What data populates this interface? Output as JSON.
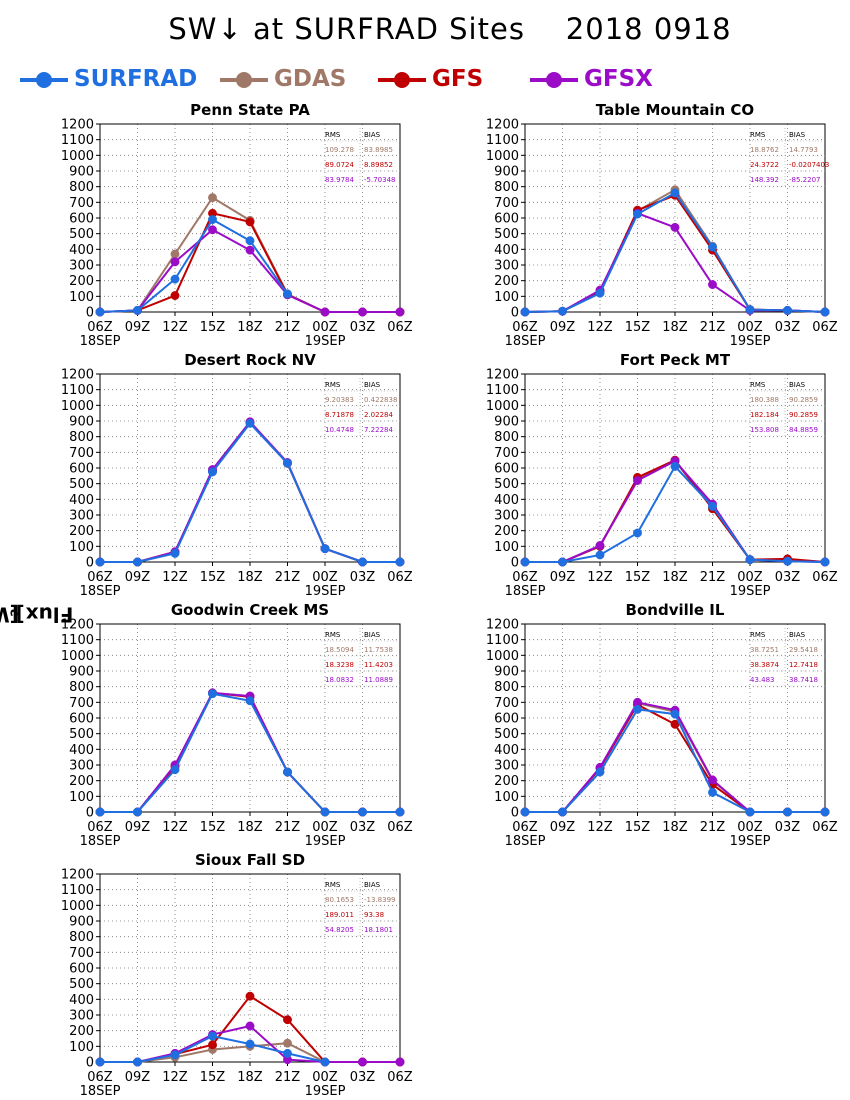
{
  "title": "SW↓ at SURFRAD Sites    2018 0918",
  "ylabel_main": "Flux [Wm",
  "ylabel_sup": "-2",
  "ylabel_end": "]",
  "legend": [
    {
      "label": "SURFRAD",
      "color": "#1f6fe0"
    },
    {
      "label": "GDAS",
      "color": "#a07868"
    },
    {
      "label": "GFS",
      "color": "#c00000"
    },
    {
      "label": "GFSX",
      "color": "#9a0cc8"
    }
  ],
  "chart_data": [
    {
      "type": "line",
      "title": "Penn State PA",
      "categories": [
        "06Z\n18SEP",
        "09Z",
        "12Z",
        "15Z",
        "18Z",
        "21Z",
        "00Z\n19SEP",
        "03Z",
        "06Z"
      ],
      "ylim": [
        0,
        1200
      ],
      "yticks": [
        0,
        100,
        200,
        300,
        400,
        500,
        600,
        700,
        800,
        900,
        1000,
        1100,
        1200
      ],
      "grid": true,
      "stats_header": [
        "RMS",
        "BIAS"
      ],
      "stats": [
        [
          "109.278",
          "83.8985"
        ],
        [
          "89.0724",
          "8.89852"
        ],
        [
          "83.9784",
          "-5.70348"
        ]
      ],
      "series": [
        {
          "name": "SURFRAD",
          "values": [
            0,
            10,
            210,
            590,
            455,
            115,
            null,
            null,
            null
          ]
        },
        {
          "name": "GDAS",
          "values": [
            0,
            10,
            370,
            730,
            585,
            115,
            0,
            0,
            0
          ]
        },
        {
          "name": "GFS",
          "values": [
            0,
            10,
            105,
            630,
            575,
            110,
            0,
            0,
            0
          ]
        },
        {
          "name": "GFSX",
          "values": [
            0,
            10,
            320,
            525,
            395,
            110,
            0,
            0,
            0
          ]
        }
      ]
    },
    {
      "type": "line",
      "title": "Table Mountain CO",
      "categories": [
        "06Z\n18SEP",
        "09Z",
        "12Z",
        "15Z",
        "18Z",
        "21Z",
        "00Z\n19SEP",
        "03Z",
        "06Z"
      ],
      "ylim": [
        0,
        1200
      ],
      "yticks": [
        0,
        100,
        200,
        300,
        400,
        500,
        600,
        700,
        800,
        900,
        1000,
        1100,
        1200
      ],
      "grid": true,
      "stats_header": [
        "RMS",
        "BIAS"
      ],
      "stats": [
        [
          "18.8762",
          "14.7793"
        ],
        [
          "24.3722",
          "-0.0207403"
        ],
        [
          "148.392",
          "-85.2207"
        ]
      ],
      "series": [
        {
          "name": "SURFRAD",
          "values": [
            0,
            5,
            120,
            625,
            760,
            415,
            15,
            10,
            0
          ]
        },
        {
          "name": "GDAS",
          "values": [
            0,
            5,
            125,
            645,
            780,
            420,
            15,
            10,
            0
          ]
        },
        {
          "name": "GFS",
          "values": [
            0,
            5,
            130,
            650,
            745,
            395,
            15,
            10,
            0
          ]
        },
        {
          "name": "GFSX",
          "values": [
            0,
            5,
            140,
            630,
            540,
            175,
            10,
            10,
            0
          ]
        }
      ]
    },
    {
      "type": "line",
      "title": "Desert Rock NV",
      "categories": [
        "06Z\n18SEP",
        "09Z",
        "12Z",
        "15Z",
        "18Z",
        "21Z",
        "00Z\n19SEP",
        "03Z",
        "06Z"
      ],
      "ylim": [
        0,
        1200
      ],
      "yticks": [
        0,
        100,
        200,
        300,
        400,
        500,
        600,
        700,
        800,
        900,
        1000,
        1100,
        1200
      ],
      "grid": true,
      "stats_header": [
        "RMS",
        "BIAS"
      ],
      "stats": [
        [
          "9.20383",
          "0.422838"
        ],
        [
          "8.71878",
          "2.02284"
        ],
        [
          "10.4748",
          "7.22284"
        ]
      ],
      "series": [
        {
          "name": "SURFRAD",
          "values": [
            0,
            0,
            55,
            575,
            885,
            630,
            85,
            0,
            0
          ]
        },
        {
          "name": "GDAS",
          "values": [
            0,
            0,
            60,
            580,
            890,
            630,
            85,
            0,
            0
          ]
        },
        {
          "name": "GFS",
          "values": [
            0,
            0,
            65,
            580,
            890,
            630,
            85,
            0,
            0
          ]
        },
        {
          "name": "GFSX",
          "values": [
            0,
            0,
            65,
            590,
            895,
            635,
            85,
            0,
            0
          ]
        }
      ]
    },
    {
      "type": "line",
      "title": "Fort Peck MT",
      "categories": [
        "06Z\n18SEP",
        "09Z",
        "12Z",
        "15Z",
        "18Z",
        "21Z",
        "00Z\n19SEP",
        "03Z",
        "06Z"
      ],
      "ylim": [
        0,
        1200
      ],
      "yticks": [
        0,
        100,
        200,
        300,
        400,
        500,
        600,
        700,
        800,
        900,
        1000,
        1100,
        1200
      ],
      "grid": true,
      "stats_header": [
        "RMS",
        "BIAS"
      ],
      "stats": [
        [
          "180.388",
          "90.2859"
        ],
        [
          "182.184",
          "90.2859"
        ],
        [
          "153.808",
          "84.8859"
        ]
      ],
      "series": [
        {
          "name": "SURFRAD",
          "values": [
            0,
            0,
            45,
            185,
            610,
            355,
            15,
            5,
            0
          ]
        },
        {
          "name": "GDAS",
          "values": [
            0,
            0,
            105,
            530,
            645,
            345,
            15,
            15,
            0
          ]
        },
        {
          "name": "GFS",
          "values": [
            0,
            0,
            100,
            540,
            650,
            340,
            15,
            20,
            0
          ]
        },
        {
          "name": "GFSX",
          "values": [
            0,
            0,
            105,
            520,
            645,
            370,
            15,
            5,
            0
          ]
        }
      ]
    },
    {
      "type": "line",
      "title": "Goodwin Creek MS",
      "categories": [
        "06Z\n18SEP",
        "09Z",
        "12Z",
        "15Z",
        "18Z",
        "21Z",
        "00Z\n19SEP",
        "03Z",
        "06Z"
      ],
      "ylim": [
        0,
        1200
      ],
      "yticks": [
        0,
        100,
        200,
        300,
        400,
        500,
        600,
        700,
        800,
        900,
        1000,
        1100,
        1200
      ],
      "grid": true,
      "stats_header": [
        "RMS",
        "BIAS"
      ],
      "stats": [
        [
          "18.5094",
          "11.7538"
        ],
        [
          "18.3238",
          "11.4203"
        ],
        [
          "18.0832",
          "11.0889"
        ]
      ],
      "series": [
        {
          "name": "SURFRAD",
          "values": [
            0,
            0,
            270,
            755,
            710,
            255,
            0,
            0,
            0
          ]
        },
        {
          "name": "GDAS",
          "values": [
            0,
            0,
            295,
            760,
            740,
            255,
            0,
            0,
            0
          ]
        },
        {
          "name": "GFS",
          "values": [
            0,
            0,
            290,
            760,
            735,
            255,
            0,
            0,
            0
          ]
        },
        {
          "name": "GFSX",
          "values": [
            0,
            0,
            300,
            760,
            740,
            255,
            0,
            0,
            0
          ]
        }
      ]
    },
    {
      "type": "line",
      "title": "Bondville IL",
      "categories": [
        "06Z\n18SEP",
        "09Z",
        "12Z",
        "15Z",
        "18Z",
        "21Z",
        "00Z\n19SEP",
        "03Z",
        "06Z"
      ],
      "ylim": [
        0,
        1200
      ],
      "yticks": [
        0,
        100,
        200,
        300,
        400,
        500,
        600,
        700,
        800,
        900,
        1000,
        1100,
        1200
      ],
      "grid": true,
      "stats_header": [
        "RMS",
        "BIAS"
      ],
      "stats": [
        [
          "38.7251",
          "29.5418"
        ],
        [
          "38.3874",
          "12.7418"
        ],
        [
          "43.483",
          "38.7418"
        ]
      ],
      "series": [
        {
          "name": "SURFRAD",
          "values": [
            0,
            0,
            255,
            655,
            625,
            125,
            0,
            0,
            0
          ]
        },
        {
          "name": "GDAS",
          "values": [
            0,
            0,
            280,
            695,
            640,
            200,
            0,
            0,
            0
          ]
        },
        {
          "name": "GFS",
          "values": [
            0,
            0,
            280,
            685,
            560,
            175,
            0,
            0,
            0
          ]
        },
        {
          "name": "GFSX",
          "values": [
            0,
            0,
            285,
            700,
            650,
            205,
            0,
            0,
            0
          ]
        }
      ]
    },
    {
      "type": "line",
      "title": "Sioux Fall SD",
      "categories": [
        "06Z\n18SEP",
        "09Z",
        "12Z",
        "15Z",
        "18Z",
        "21Z",
        "00Z\n19SEP",
        "03Z",
        "06Z"
      ],
      "ylim": [
        0,
        1200
      ],
      "yticks": [
        0,
        100,
        200,
        300,
        400,
        500,
        600,
        700,
        800,
        900,
        1000,
        1100,
        1200
      ],
      "grid": true,
      "stats_header": [
        "RMS",
        "BIAS"
      ],
      "stats": [
        [
          "80.1653",
          "-13.8399"
        ],
        [
          "189.011",
          "93.38"
        ],
        [
          "54.8205",
          "18.1801"
        ]
      ],
      "series": [
        {
          "name": "SURFRAD",
          "values": [
            0,
            0,
            45,
            165,
            115,
            55,
            0,
            null,
            null
          ]
        },
        {
          "name": "GDAS",
          "values": [
            0,
            0,
            30,
            80,
            100,
            120,
            0,
            0,
            0
          ]
        },
        {
          "name": "GFS",
          "values": [
            0,
            0,
            50,
            110,
            420,
            270,
            0,
            0,
            0
          ]
        },
        {
          "name": "GFSX",
          "values": [
            0,
            0,
            55,
            175,
            230,
            15,
            0,
            0,
            0
          ]
        }
      ]
    }
  ]
}
